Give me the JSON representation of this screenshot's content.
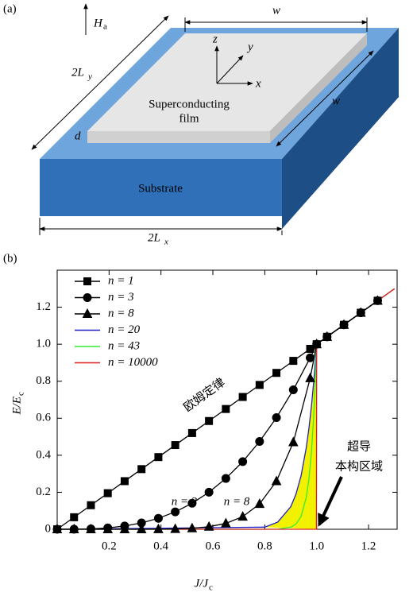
{
  "panel_a": {
    "label": "(a)",
    "field": [
      "H",
      "a"
    ],
    "width_top": "w",
    "width_side": "w",
    "length_y": [
      "2L",
      "y"
    ],
    "length_x": [
      "2L",
      "x"
    ],
    "thickness": "d",
    "axes": [
      "x",
      "y",
      "z"
    ],
    "film": [
      "Superconducting",
      "film"
    ],
    "substrate": "Substrate"
  },
  "panel_b_label": "(b)",
  "chart_data": {
    "type": "line",
    "xlabel": [
      "J/J",
      "c"
    ],
    "ylabel": [
      "E/E",
      "c"
    ],
    "xlim": [
      0,
      1.31
    ],
    "ylim": [
      0,
      1.4
    ],
    "xticks": [
      0.2,
      0.4,
      0.6,
      0.8,
      {
        "value": 1,
        "label": "1.0"
      },
      1.2
    ],
    "yticks": [
      0,
      0.2,
      0.4,
      0.6,
      0.8,
      {
        "value": 1,
        "label": "1.0"
      },
      1.2
    ],
    "legend": "upper left",
    "shade_color": "#f2f200",
    "series": [
      {
        "name": "n = 1",
        "color": "#000000",
        "marker": "square",
        "x": [
          0,
          0.065,
          0.13,
          0.195,
          0.26,
          0.325,
          0.39,
          0.455,
          0.52,
          0.585,
          0.65,
          0.715,
          0.78,
          0.845,
          0.91,
          0.975,
          1.0,
          1.04,
          1.105,
          1.17,
          1.235
        ],
        "values": [
          0,
          0.065,
          0.13,
          0.195,
          0.26,
          0.325,
          0.39,
          0.455,
          0.52,
          0.585,
          0.65,
          0.715,
          0.78,
          0.845,
          0.91,
          0.975,
          1.0,
          1.04,
          1.105,
          1.17,
          1.235
        ]
      },
      {
        "name": "n = 3",
        "color": "#000000",
        "marker": "circle",
        "x": [
          0,
          0.065,
          0.13,
          0.195,
          0.26,
          0.325,
          0.39,
          0.455,
          0.52,
          0.585,
          0.65,
          0.715,
          0.78,
          0.845,
          0.91,
          0.975,
          1.0,
          1.04,
          1.105,
          1.17,
          1.235
        ],
        "values": [
          0,
          0.0003,
          0.0022,
          0.0074,
          0.0176,
          0.0343,
          0.0593,
          0.0942,
          0.1406,
          0.2002,
          0.2746,
          0.3655,
          0.4746,
          0.6034,
          0.7536,
          0.9268,
          1.0,
          1.04,
          1.105,
          1.17,
          1.235
        ]
      },
      {
        "name": "n = 8",
        "color": "#000000",
        "marker": "triangle",
        "x": [
          0,
          0.065,
          0.13,
          0.195,
          0.26,
          0.325,
          0.39,
          0.455,
          0.52,
          0.585,
          0.65,
          0.715,
          0.78,
          0.845,
          0.91,
          0.975,
          1.0,
          1.04,
          1.105,
          1.17,
          1.235
        ],
        "values": [
          0,
          0,
          0,
          0,
          0,
          0.0001,
          0.0005,
          0.0018,
          0.0053,
          0.0137,
          0.0319,
          0.0683,
          0.137,
          0.2596,
          0.4703,
          0.8167,
          1.0,
          1.04,
          1.105,
          1.17,
          1.235
        ]
      },
      {
        "name": "n = 20",
        "color": "#1f1fc8",
        "x": [
          0,
          0.8,
          0.85,
          0.9,
          0.92,
          0.94,
          0.96,
          0.97,
          0.98,
          0.99,
          1.0,
          1.3
        ],
        "values": [
          0,
          0.0115,
          0.0388,
          0.1216,
          0.1887,
          0.2901,
          0.442,
          0.5438,
          0.6676,
          0.8179,
          1.0,
          1.3
        ]
      },
      {
        "name": "n = 43",
        "color": "#33ee33",
        "x": [
          0,
          0.8,
          0.85,
          0.9,
          0.92,
          0.94,
          0.96,
          0.97,
          0.98,
          0.99,
          1.0,
          1.3
        ],
        "values": [
          0,
          0,
          0.0009,
          0.0108,
          0.0277,
          0.0699,
          0.1726,
          0.27,
          0.4197,
          0.6494,
          1.0,
          1.3
        ]
      },
      {
        "name": "n = 10000",
        "color": "#e02020",
        "x": [
          0,
          0.999,
          1.0,
          1.3
        ],
        "values": [
          0,
          0,
          1.0,
          1.3
        ]
      }
    ],
    "annotations": [
      "欧姆定律",
      "n = 3",
      "n = 8",
      "超导",
      "本构区域"
    ]
  }
}
